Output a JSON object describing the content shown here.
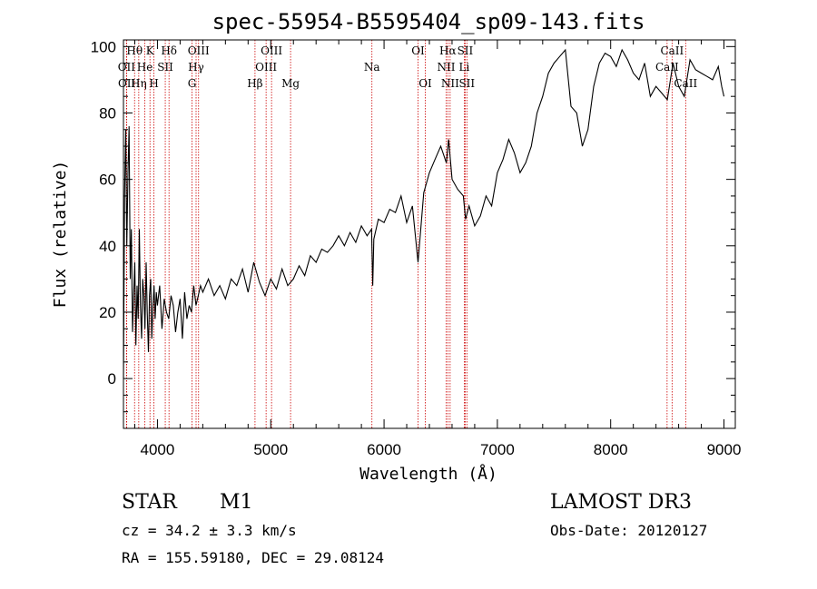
{
  "chart_data": {
    "type": "line",
    "title": "spec-55954-B5595404_sp09-143.fits",
    "xlabel": "Wavelength (Å)",
    "ylabel": "Flux (relative)",
    "xlim": [
      3700,
      9100
    ],
    "ylim": [
      -15,
      102
    ],
    "x_ticks": [
      4000,
      5000,
      6000,
      7000,
      8000,
      9000
    ],
    "y_ticks": [
      0,
      20,
      40,
      60,
      80,
      100
    ],
    "grid": false,
    "line_color": "#000000",
    "marker_color": "#cc0000",
    "series": [
      {
        "x": [
          3700,
          3710,
          3720,
          3730,
          3740,
          3750,
          3760,
          3770,
          3780,
          3790,
          3800,
          3810,
          3820,
          3830,
          3840,
          3850,
          3860,
          3870,
          3880,
          3890,
          3900,
          3910,
          3920,
          3930,
          3940,
          3950,
          3960,
          3970,
          3980,
          3990,
          4000,
          4020,
          4040,
          4060,
          4080,
          4100,
          4120,
          4140,
          4160,
          4180,
          4200,
          4220,
          4240,
          4260,
          4280,
          4300,
          4320,
          4340,
          4360,
          4380,
          4400,
          4450,
          4500,
          4550,
          4600,
          4650,
          4700,
          4750,
          4800,
          4850,
          4900,
          4950,
          5000,
          5050,
          5100,
          5150,
          5200,
          5250,
          5300,
          5350,
          5400,
          5450,
          5500,
          5550,
          5600,
          5650,
          5700,
          5750,
          5800,
          5850,
          5890,
          5900,
          5910,
          5950,
          6000,
          6050,
          6100,
          6150,
          6200,
          6250,
          6300,
          6350,
          6400,
          6450,
          6500,
          6550,
          6570,
          6600,
          6650,
          6700,
          6720,
          6750,
          6800,
          6850,
          6900,
          6950,
          7000,
          7050,
          7100,
          7150,
          7200,
          7250,
          7300,
          7350,
          7400,
          7450,
          7500,
          7550,
          7600,
          7650,
          7700,
          7750,
          7800,
          7850,
          7900,
          7950,
          8000,
          8050,
          8100,
          8150,
          8200,
          8250,
          8300,
          8350,
          8400,
          8450,
          8500,
          8550,
          8600,
          8650,
          8700,
          8750,
          8800,
          8850,
          8900,
          8950,
          8980,
          9000
        ],
        "y": [
          0,
          55,
          75,
          40,
          62,
          76,
          30,
          45,
          14,
          25,
          35,
          10,
          28,
          18,
          45,
          22,
          12,
          30,
          25,
          15,
          35,
          20,
          8,
          25,
          30,
          12,
          22,
          28,
          18,
          26,
          22,
          28,
          15,
          24,
          20,
          18,
          25,
          22,
          14,
          20,
          24,
          12,
          26,
          18,
          22,
          20,
          28,
          22,
          25,
          28,
          26,
          30,
          25,
          28,
          24,
          30,
          28,
          33,
          26,
          35,
          29,
          25,
          30,
          27,
          33,
          28,
          30,
          34,
          31,
          37,
          35,
          39,
          38,
          40,
          43,
          40,
          44,
          41,
          46,
          43,
          45,
          28,
          42,
          48,
          47,
          51,
          50,
          55,
          47,
          52,
          35,
          56,
          62,
          66,
          70,
          65,
          72,
          60,
          57,
          55,
          48,
          52,
          46,
          49,
          55,
          52,
          62,
          66,
          72,
          68,
          62,
          65,
          70,
          80,
          85,
          92,
          95,
          97,
          99,
          82,
          80,
          70,
          75,
          88,
          95,
          98,
          97,
          94,
          99,
          96,
          92,
          90,
          95,
          85,
          88,
          86,
          84,
          95,
          88,
          85,
          96,
          93,
          92,
          91,
          90,
          94,
          88,
          85
        ]
      }
    ],
    "spectral_lines": [
      {
        "label": "Hθ",
        "x": 3798,
        "row": 0
      },
      {
        "label": "OII",
        "x": 3727,
        "row": 1
      },
      {
        "label": "OII",
        "x": 3729,
        "row": 2
      },
      {
        "label": "He",
        "x": 3889,
        "row": 1
      },
      {
        "label": "Hη",
        "x": 3835,
        "row": 2
      },
      {
        "label": "K",
        "x": 3934,
        "row": 0
      },
      {
        "label": "SII",
        "x": 4069,
        "row": 1
      },
      {
        "label": "H",
        "x": 3969,
        "row": 2
      },
      {
        "label": "Hδ",
        "x": 4102,
        "row": 0
      },
      {
        "label": "OIII",
        "x": 4363,
        "row": 0
      },
      {
        "label": "Hγ",
        "x": 4341,
        "row": 1
      },
      {
        "label": "G",
        "x": 4305,
        "row": 2
      },
      {
        "label": "Hβ",
        "x": 4861,
        "row": 2
      },
      {
        "label": "OIII",
        "x": 5007,
        "row": 0
      },
      {
        "label": "OIII",
        "x": 4959,
        "row": 1
      },
      {
        "label": "Mg",
        "x": 5175,
        "row": 2
      },
      {
        "label": "Na",
        "x": 5893,
        "row": 1
      },
      {
        "label": "OI",
        "x": 6300,
        "row": 0
      },
      {
        "label": "OI",
        "x": 6364,
        "row": 2
      },
      {
        "label": "Hα",
        "x": 6563,
        "row": 0
      },
      {
        "label": "SII",
        "x": 6716,
        "row": 0
      },
      {
        "label": "NII",
        "x": 6548,
        "row": 1
      },
      {
        "label": "Li",
        "x": 6708,
        "row": 1
      },
      {
        "label": "NII",
        "x": 6583,
        "row": 2
      },
      {
        "label": "SII",
        "x": 6731,
        "row": 2
      },
      {
        "label": "CaII",
        "x": 8542,
        "row": 0
      },
      {
        "label": "CaII",
        "x": 8498,
        "row": 1
      },
      {
        "label": "CaII",
        "x": 8662,
        "row": 2
      }
    ]
  },
  "info": {
    "object_class": "STAR",
    "subclass": "M1",
    "survey": "LAMOST DR3",
    "cz": "cz = 34.2 ± 3.3 km/s",
    "obs_date": "Obs-Date: 20120127",
    "coords": "RA = 155.59180, DEC =  29.08124"
  }
}
